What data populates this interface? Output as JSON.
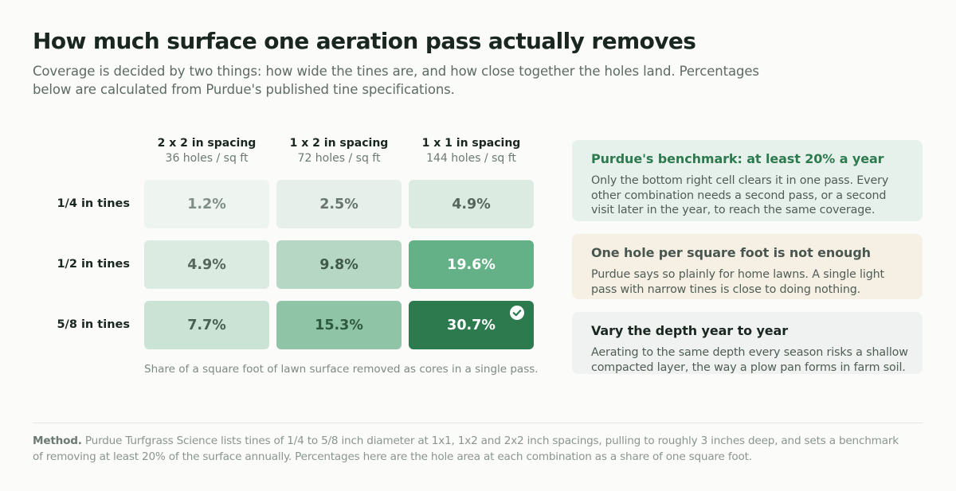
{
  "header": {
    "title": "How much surface one aeration pass actually removes",
    "subtitle": "Coverage is decided by two things: how wide the tines are, and how close together the holes land. Percentages below are calculated from Purdue's published tine specifications."
  },
  "chart_data": {
    "type": "heatmap",
    "columns": [
      {
        "label": "2 x 2 in spacing",
        "sub": "36 holes / sq ft"
      },
      {
        "label": "1 x 2 in spacing",
        "sub": "72 holes / sq ft"
      },
      {
        "label": "1 x 1 in spacing",
        "sub": "144 holes / sq ft"
      }
    ],
    "rows": [
      "1/4 in tines",
      "1/2 in tines",
      "5/8 in tines"
    ],
    "values": [
      [
        1.2,
        2.5,
        4.9
      ],
      [
        4.9,
        9.8,
        19.6
      ],
      [
        7.7,
        15.3,
        30.7
      ]
    ],
    "labels": [
      [
        "1.2%",
        "2.5%",
        "4.9%"
      ],
      [
        "4.9%",
        "9.8%",
        "19.6%"
      ],
      [
        "7.7%",
        "15.3%",
        "30.7%"
      ]
    ],
    "benchmark": 20,
    "caption": "Share of a square foot of lawn surface removed as cores in a single pass."
  },
  "colors": {
    "cells": [
      [
        "#eef4f0",
        "#e6efe9",
        "#dbebe2"
      ],
      [
        "#dbebe2",
        "#b5d7c4",
        "#64b087"
      ],
      [
        "#cae3d5",
        "#8fc4a6",
        "#2e7a4f"
      ]
    ],
    "text": [
      [
        "#7f8f86",
        "#66766d",
        "#56665d"
      ],
      [
        "#56665d",
        "#3f5a4a",
        "#ffffff"
      ],
      [
        "#4a6053",
        "#2e5a40",
        "#ffffff"
      ]
    ],
    "accent": "#2e7a4f"
  },
  "cards": [
    {
      "title": "Purdue's benchmark: at least 20% a year",
      "body": "Only the bottom right cell clears it in one pass. Every other combination needs a second pass, or a second visit later in the year, to reach the same coverage."
    },
    {
      "title": "One hole per square foot is not enough",
      "body": "Purdue says so plainly for home lawns. A single light pass with narrow tines is close to doing nothing."
    },
    {
      "title": "Vary the depth year to year",
      "body": "Aerating to the same depth every season risks a shallow compacted layer, the way a plow pan forms in farm soil."
    }
  ],
  "footer": {
    "method_label": "Method.",
    "method_text": "Purdue Turfgrass Science lists tines of 1/4 to 5/8 inch diameter at 1x1, 1x2 and 2x2 inch spacings, pulling to roughly 3 inches deep, and sets a benchmark of removing at least 20% of the surface annually. Percentages here are the hole area at each combination as a share of one square foot."
  },
  "icons": {
    "benchmark_met": "check-circle-icon"
  }
}
